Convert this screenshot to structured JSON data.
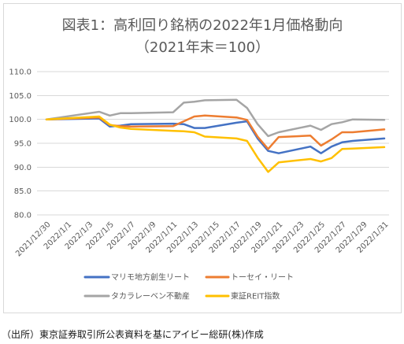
{
  "chart_data": {
    "type": "line",
    "title": "図表1：高利回り銘柄の2022年1月価格動向",
    "subtitle": "（2021年末＝100）",
    "xlim": [
      "2021/12/30",
      "2022/1/31"
    ],
    "x_tick_labels": [
      "2021/12/30",
      "2022/1/1",
      "2022/1/3",
      "2022/1/5",
      "2022/1/7",
      "2022/1/9",
      "2022/1/11",
      "2022/1/13",
      "2022/1/15",
      "2022/1/17",
      "2022/1/19",
      "2022/1/21",
      "2022/1/23",
      "2022/1/25",
      "2022/1/27",
      "2022/1/29",
      "2022/1/31"
    ],
    "ylim": [
      80,
      110
    ],
    "y_tick_labels": [
      "80.0",
      "85.0",
      "90.0",
      "95.0",
      "100.0",
      "105.0",
      "110.0"
    ],
    "grid": true,
    "legend_position": "bottom",
    "x": [
      "2021/12/30",
      "2022/1/4",
      "2022/1/5",
      "2022/1/6",
      "2022/1/7",
      "2022/1/11",
      "2022/1/12",
      "2022/1/13",
      "2022/1/14",
      "2022/1/17",
      "2022/1/18",
      "2022/1/19",
      "2022/1/20",
      "2022/1/21",
      "2022/1/24",
      "2022/1/25",
      "2022/1/26",
      "2022/1/27",
      "2022/1/28",
      "2022/1/31"
    ],
    "series": [
      {
        "name": "マリモ地方創生リート",
        "color": "#4472C4",
        "values": [
          100.0,
          100.2,
          98.5,
          98.7,
          99.0,
          99.1,
          99.0,
          98.2,
          98.2,
          99.3,
          99.6,
          96.0,
          93.4,
          92.9,
          94.3,
          92.9,
          94.3,
          95.2,
          95.5,
          96.0
        ]
      },
      {
        "name": "トーセイ・リート",
        "color": "#ED7D31",
        "values": [
          100.0,
          100.4,
          98.8,
          98.6,
          98.5,
          98.6,
          99.6,
          100.6,
          100.8,
          100.4,
          99.9,
          96.4,
          93.8,
          96.3,
          96.6,
          94.5,
          95.8,
          97.3,
          97.3,
          97.9
        ]
      },
      {
        "name": "タカラレーベン不動産",
        "color": "#A5A5A5",
        "values": [
          100.0,
          101.6,
          100.8,
          101.3,
          101.3,
          101.5,
          103.5,
          103.7,
          104.0,
          104.1,
          102.4,
          99.0,
          96.5,
          97.3,
          98.7,
          97.8,
          99.0,
          99.4,
          100.0,
          99.9
        ]
      },
      {
        "name": "東証REIT指数",
        "color": "#FFC000",
        "values": [
          100.0,
          100.6,
          98.9,
          98.3,
          98.0,
          97.6,
          97.5,
          97.3,
          96.4,
          96.0,
          95.5,
          92.0,
          89.0,
          91.0,
          91.7,
          91.2,
          91.9,
          93.8,
          93.9,
          94.2
        ]
      }
    ]
  },
  "source_note": "（出所）東京証券取引所公表資料を基にアイビー総研(株)作成"
}
